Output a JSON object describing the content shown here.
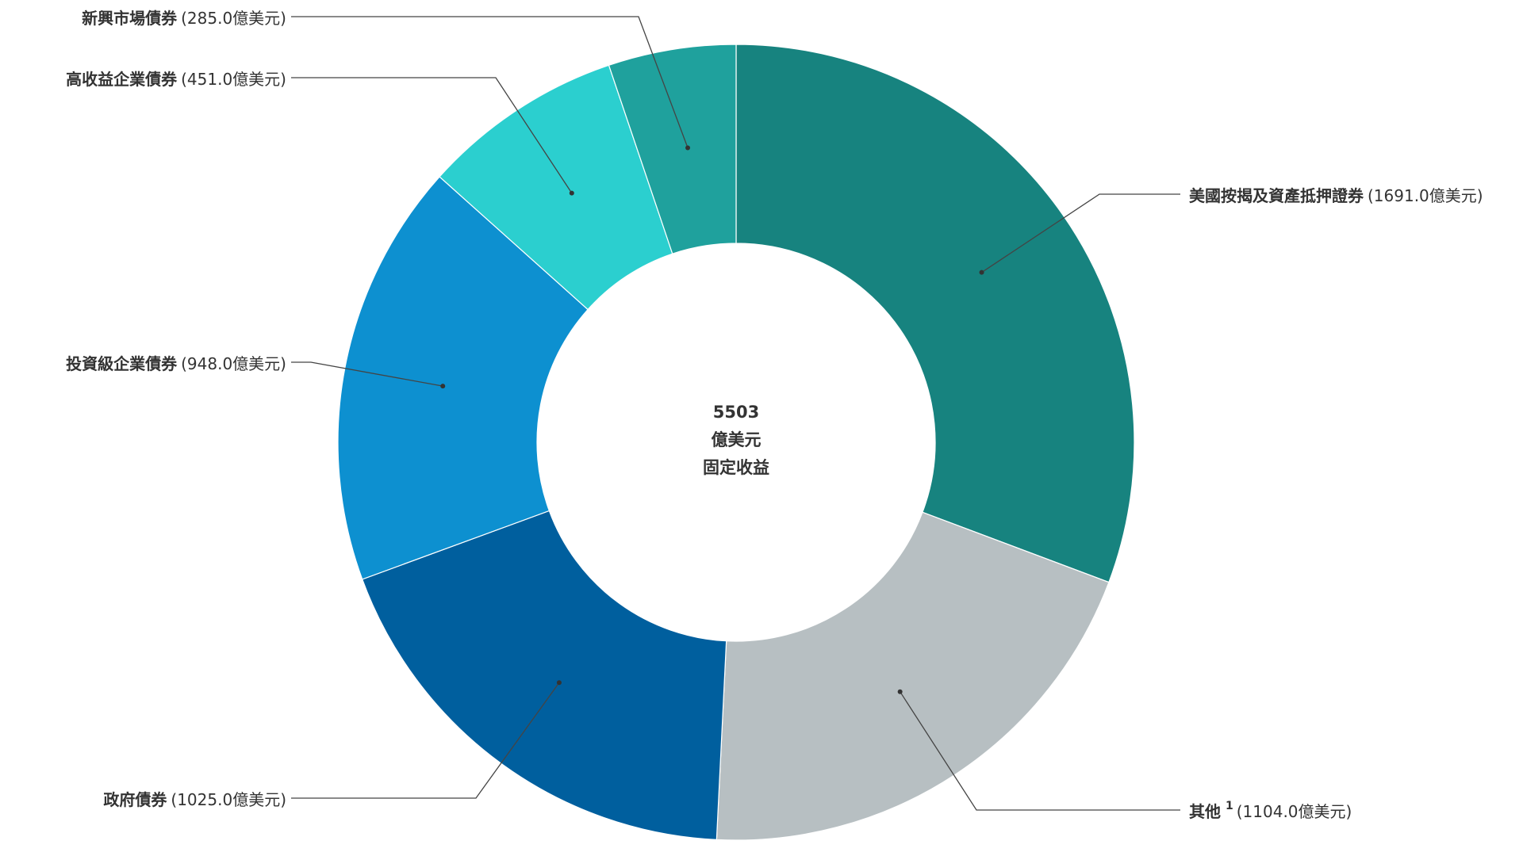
{
  "chart_data": {
    "type": "donut",
    "categories": [
      "美國按揭及資產抵押證券",
      "其他",
      "政府債券",
      "投資級企業債券",
      "高收益企業債券",
      "新興市場債券"
    ],
    "category_notes": [
      null,
      "1",
      null,
      null,
      null,
      null
    ],
    "values": [
      1691.0,
      1104.0,
      1025.0,
      948.0,
      451.0,
      285.0
    ],
    "value_labels": [
      "(1691.0億美元)",
      "(1104.0億美元)",
      "(1025.0億美元)",
      "(948.0億美元)",
      "(451.0億美元)",
      "(285.0億美元)"
    ],
    "colors": [
      "#17837f",
      "#b7bfc2",
      "#005f9e",
      "#0d90d0",
      "#2bcfcf",
      "#1fa19d"
    ],
    "center_lines": [
      "5503",
      "億美元",
      "固定收益"
    ]
  }
}
